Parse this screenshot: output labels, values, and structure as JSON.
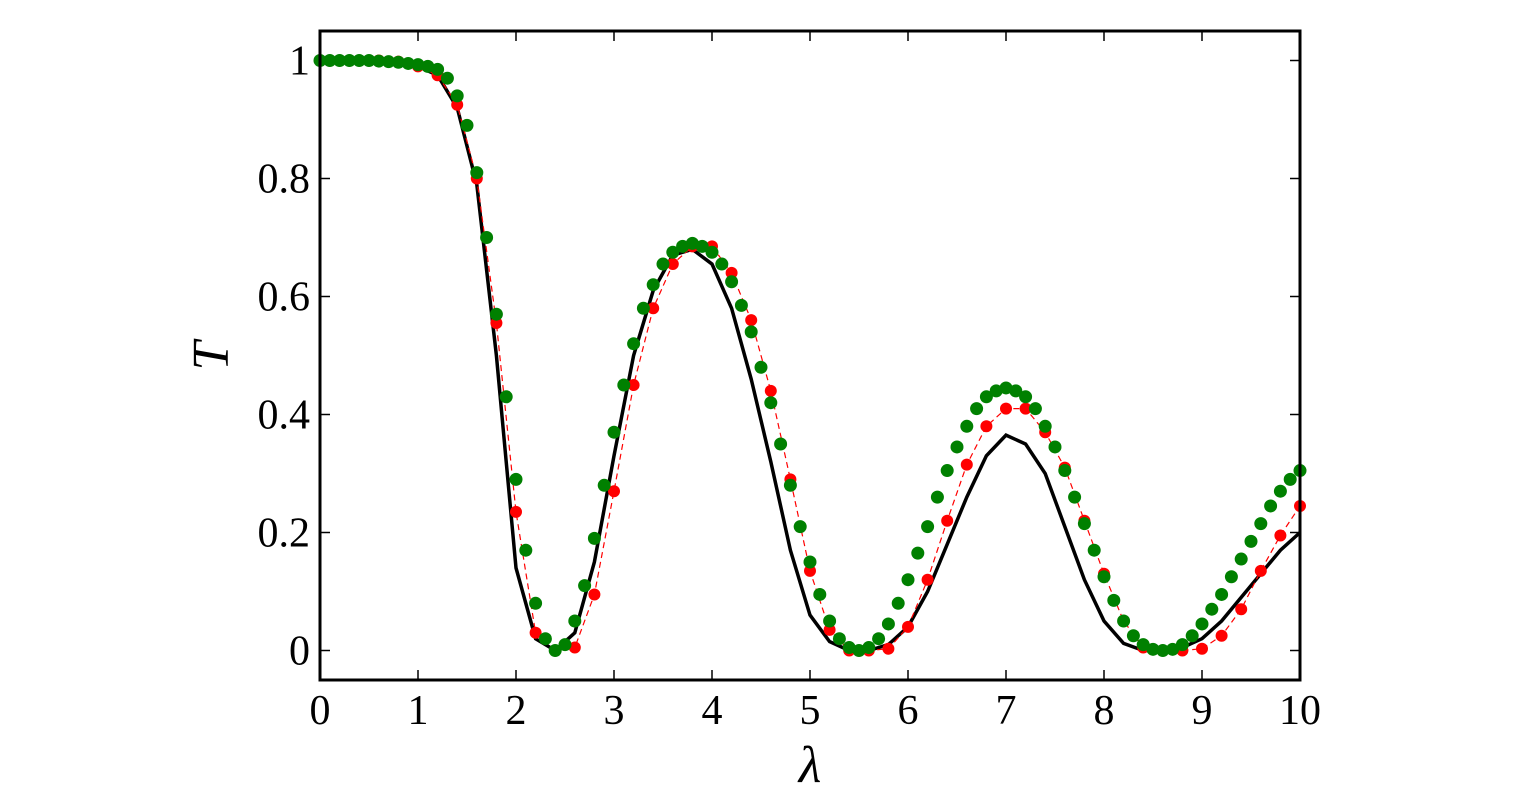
{
  "chart_data": {
    "type": "line",
    "x_label": "λ",
    "y_label": "T",
    "xlim": [
      0,
      10
    ],
    "ylim": [
      -0.05,
      1.05
    ],
    "xticks": [
      0,
      1,
      2,
      3,
      4,
      5,
      6,
      7,
      8,
      9,
      10
    ],
    "yticks": [
      0,
      0.2,
      0.4,
      0.6,
      0.8,
      1
    ],
    "grid": false,
    "series": [
      {
        "color": "#000000",
        "line_style": "solid",
        "marker": false,
        "x": [
          0,
          0.2,
          0.4,
          0.6,
          0.8,
          1,
          1.2,
          1.4,
          1.6,
          1.8,
          2,
          2.2,
          2.4,
          2.6,
          2.8,
          3,
          3.2,
          3.4,
          3.6,
          3.8,
          4,
          4.2,
          4.4,
          4.6,
          4.8,
          5,
          5.2,
          5.4,
          5.6,
          5.8,
          6,
          6.2,
          6.4,
          6.6,
          6.8,
          7,
          7.2,
          7.4,
          7.6,
          7.8,
          8,
          8.2,
          8.4,
          8.6,
          8.8,
          9,
          9.2,
          9.4,
          9.6,
          9.8,
          10
        ],
        "values": [
          1,
          1,
          1,
          1,
          0.998,
          0.99,
          0.975,
          0.92,
          0.79,
          0.5,
          0.14,
          0.02,
          0,
          0.03,
          0.15,
          0.33,
          0.5,
          0.61,
          0.67,
          0.68,
          0.655,
          0.58,
          0.46,
          0.32,
          0.17,
          0.06,
          0.015,
          0,
          0,
          0.01,
          0.04,
          0.1,
          0.18,
          0.26,
          0.33,
          0.365,
          0.35,
          0.3,
          0.21,
          0.12,
          0.05,
          0.012,
          0,
          0,
          0.005,
          0.02,
          0.05,
          0.09,
          0.13,
          0.17,
          0.2
        ]
      },
      {
        "color": "#ff0000",
        "line_style": "dashed",
        "marker": true,
        "x": [
          0,
          0.2,
          0.4,
          0.6,
          0.8,
          1,
          1.2,
          1.4,
          1.6,
          1.8,
          2,
          2.2,
          2.4,
          2.6,
          2.8,
          3,
          3.2,
          3.4,
          3.6,
          3.8,
          4,
          4.2,
          4.4,
          4.6,
          4.8,
          5,
          5.2,
          5.4,
          5.6,
          5.8,
          6,
          6.2,
          6.4,
          6.6,
          6.8,
          7,
          7.2,
          7.4,
          7.6,
          7.8,
          8,
          8.2,
          8.4,
          8.6,
          8.8,
          9,
          9.2,
          9.4,
          9.6,
          9.8,
          10
        ],
        "values": [
          1,
          1,
          1,
          1,
          0.998,
          0.99,
          0.975,
          0.925,
          0.8,
          0.555,
          0.235,
          0.03,
          0,
          0.005,
          0.095,
          0.27,
          0.45,
          0.58,
          0.655,
          0.685,
          0.685,
          0.64,
          0.56,
          0.44,
          0.29,
          0.135,
          0.035,
          0,
          0,
          0.003,
          0.04,
          0.12,
          0.22,
          0.315,
          0.38,
          0.41,
          0.41,
          0.37,
          0.31,
          0.22,
          0.13,
          0.05,
          0.005,
          0,
          0,
          0.003,
          0.025,
          0.07,
          0.135,
          0.195,
          0.245
        ]
      },
      {
        "color": "#008000",
        "line_style": "none",
        "marker": true,
        "x": [
          0,
          0.1,
          0.2,
          0.3,
          0.4,
          0.5,
          0.6,
          0.7,
          0.8,
          0.9,
          1,
          1.1,
          1.2,
          1.3,
          1.4,
          1.5,
          1.6,
          1.7,
          1.8,
          1.9,
          2,
          2.1,
          2.2,
          2.3,
          2.4,
          2.5,
          2.6,
          2.7,
          2.8,
          2.9,
          3,
          3.1,
          3.2,
          3.3,
          3.4,
          3.5,
          3.6,
          3.7,
          3.8,
          3.9,
          4,
          4.1,
          4.2,
          4.3,
          4.4,
          4.5,
          4.6,
          4.7,
          4.8,
          4.9,
          5,
          5.1,
          5.2,
          5.3,
          5.4,
          5.5,
          5.6,
          5.7,
          5.8,
          5.9,
          6,
          6.1,
          6.2,
          6.3,
          6.4,
          6.5,
          6.6,
          6.7,
          6.8,
          6.9,
          7,
          7.1,
          7.2,
          7.3,
          7.4,
          7.5,
          7.6,
          7.7,
          7.8,
          7.9,
          8,
          8.1,
          8.2,
          8.3,
          8.4,
          8.5,
          8.6,
          8.7,
          8.8,
          8.9,
          9,
          9.1,
          9.2,
          9.3,
          9.4,
          9.5,
          9.6,
          9.7,
          9.8,
          9.9,
          10
        ],
        "values": [
          1,
          1,
          1,
          1,
          1,
          1,
          0.999,
          0.998,
          0.997,
          0.995,
          0.993,
          0.99,
          0.985,
          0.97,
          0.94,
          0.89,
          0.81,
          0.7,
          0.57,
          0.43,
          0.29,
          0.17,
          0.08,
          0.02,
          0,
          0.01,
          0.05,
          0.11,
          0.19,
          0.28,
          0.37,
          0.45,
          0.52,
          0.58,
          0.62,
          0.655,
          0.675,
          0.685,
          0.69,
          0.685,
          0.675,
          0.655,
          0.625,
          0.585,
          0.54,
          0.48,
          0.42,
          0.35,
          0.28,
          0.21,
          0.15,
          0.095,
          0.05,
          0.02,
          0.005,
          0,
          0.005,
          0.02,
          0.045,
          0.08,
          0.12,
          0.165,
          0.21,
          0.26,
          0.305,
          0.345,
          0.38,
          0.41,
          0.43,
          0.44,
          0.445,
          0.44,
          0.43,
          0.41,
          0.38,
          0.345,
          0.305,
          0.26,
          0.215,
          0.17,
          0.125,
          0.085,
          0.05,
          0.025,
          0.01,
          0.002,
          0,
          0.002,
          0.01,
          0.025,
          0.045,
          0.07,
          0.095,
          0.125,
          0.155,
          0.185,
          0.215,
          0.245,
          0.27,
          0.29,
          0.305
        ]
      }
    ]
  }
}
